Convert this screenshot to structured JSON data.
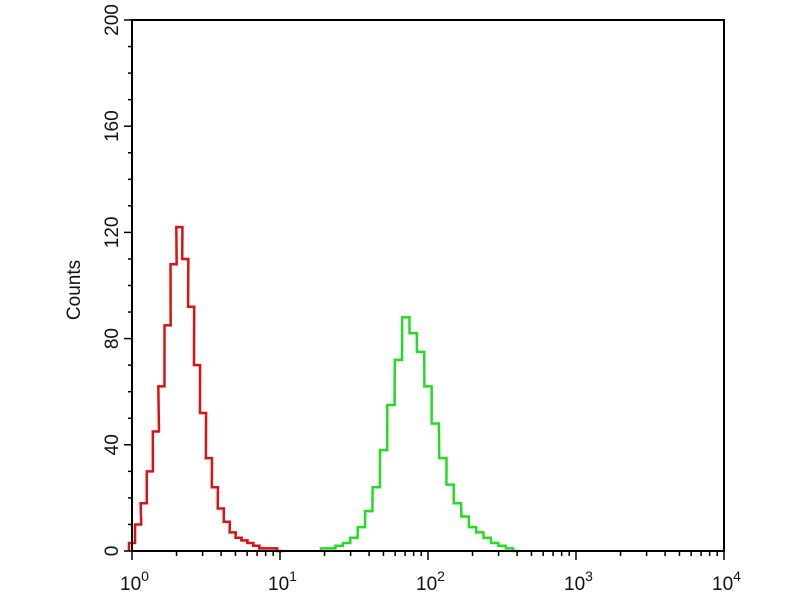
{
  "chart_data": {
    "type": "line",
    "title": "",
    "xlabel": "",
    "ylabel": "Counts",
    "x_scale": "log",
    "xlim": [
      1,
      10000
    ],
    "ylim": [
      0,
      200
    ],
    "grid": false,
    "x_ticks": [
      {
        "base": "10",
        "exp": "0"
      },
      {
        "base": "10",
        "exp": "1"
      },
      {
        "base": "10",
        "exp": "2"
      },
      {
        "base": "10",
        "exp": "3"
      },
      {
        "base": "10",
        "exp": "4"
      }
    ],
    "y_ticks": [
      "0",
      "40",
      "80",
      "120",
      "160",
      "200"
    ],
    "series": [
      {
        "color": "#dd1111",
        "x": [
          1,
          1.1,
          1.2,
          1.32,
          1.45,
          1.58,
          1.74,
          1.91,
          2.09,
          2.29,
          2.51,
          2.75,
          3.02,
          3.31,
          3.63,
          3.98,
          4.37,
          4.79,
          5.25,
          5.75,
          6.31,
          6.92,
          7.59,
          8.32,
          9.12,
          10.0
        ],
        "y": [
          3,
          10,
          18,
          30,
          45,
          62,
          85,
          108,
          122,
          110,
          92,
          70,
          52,
          35,
          24,
          16,
          11,
          7,
          5,
          4,
          3,
          2,
          1,
          1,
          1,
          0
        ]
      },
      {
        "color": "#22dd22",
        "x": [
          20.0,
          22.4,
          25.1,
          28.2,
          31.6,
          35.5,
          39.8,
          44.7,
          50.1,
          56.2,
          63.1,
          70.8,
          79.4,
          89.1,
          100,
          112,
          126,
          141,
          158,
          178,
          200,
          224,
          251,
          282,
          316,
          355,
          398
        ],
        "y": [
          1,
          1,
          2,
          3,
          5,
          9,
          15,
          24,
          38,
          55,
          72,
          88,
          82,
          75,
          62,
          48,
          35,
          25,
          18,
          13,
          9,
          7,
          5,
          3,
          2,
          1,
          0
        ]
      }
    ]
  }
}
